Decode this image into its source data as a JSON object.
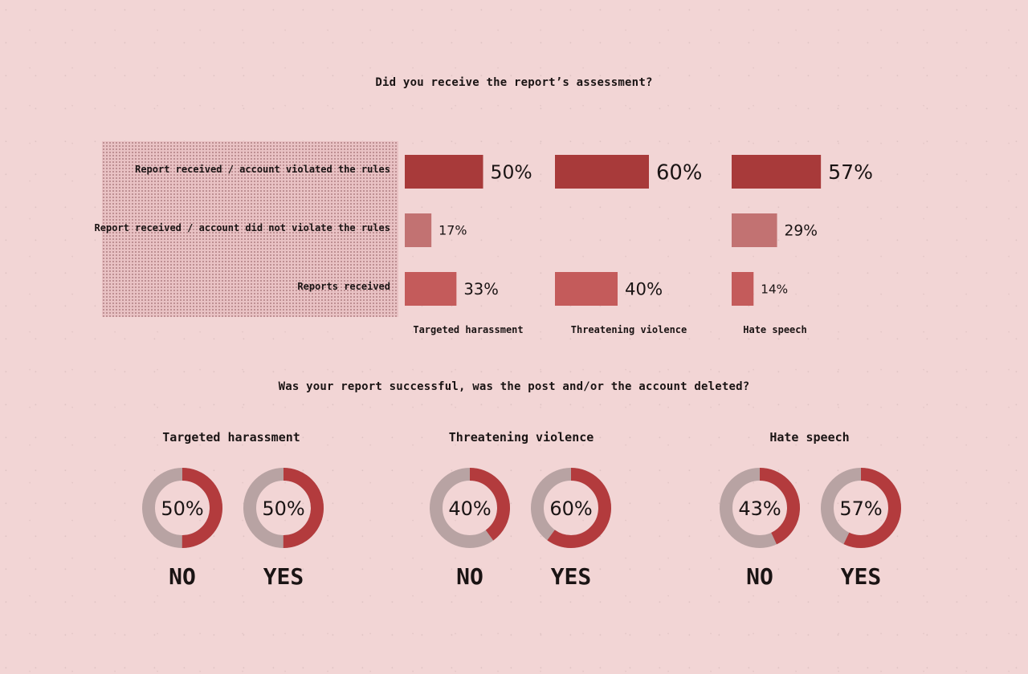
{
  "titles": {
    "assessment": "Did you receive the report’s assessment?",
    "success": "Was your report successful, was the post and/or the account deleted?"
  },
  "colors": {
    "background": "#f2d5d5",
    "violated": "#a83a3a",
    "not_violated": "#c27272",
    "received": "#c45b5b",
    "donut_grey": "#b8a3a3",
    "donut_red": "#b33b3d"
  },
  "chart_data": [
    {
      "type": "bar",
      "title": "Did you receive the report’s assessment?",
      "categories": [
        "Targeted harassment",
        "Threatening violence",
        "Hate speech"
      ],
      "series": [
        {
          "name": "Report received / account violated the rules",
          "values": [
            50,
            60,
            57
          ],
          "labels": [
            "50%",
            "60%",
            "57%"
          ]
        },
        {
          "name": "Report received / account did not violate the rules",
          "values": [
            17,
            null,
            29
          ],
          "labels": [
            "17%",
            "",
            "29%"
          ]
        },
        {
          "name": "Reports received",
          "values": [
            33,
            40,
            14
          ],
          "labels": [
            "33%",
            "40%",
            "14%"
          ]
        }
      ]
    },
    {
      "type": "pie",
      "title": "Was your report successful, was the post and/or the account deleted?",
      "groups": [
        {
          "name": "Targeted harassment",
          "slices": [
            {
              "label": "NO",
              "value": 50,
              "text": "50%"
            },
            {
              "label": "YES",
              "value": 50,
              "text": "50%"
            }
          ]
        },
        {
          "name": "Threatening violence",
          "slices": [
            {
              "label": "NO",
              "value": 40,
              "text": "40%"
            },
            {
              "label": "YES",
              "value": 60,
              "text": "60%"
            }
          ]
        },
        {
          "name": "Hate speech",
          "slices": [
            {
              "label": "NO",
              "value": 43,
              "text": "43%"
            },
            {
              "label": "YES",
              "value": 57,
              "text": "57%"
            }
          ]
        }
      ]
    }
  ]
}
